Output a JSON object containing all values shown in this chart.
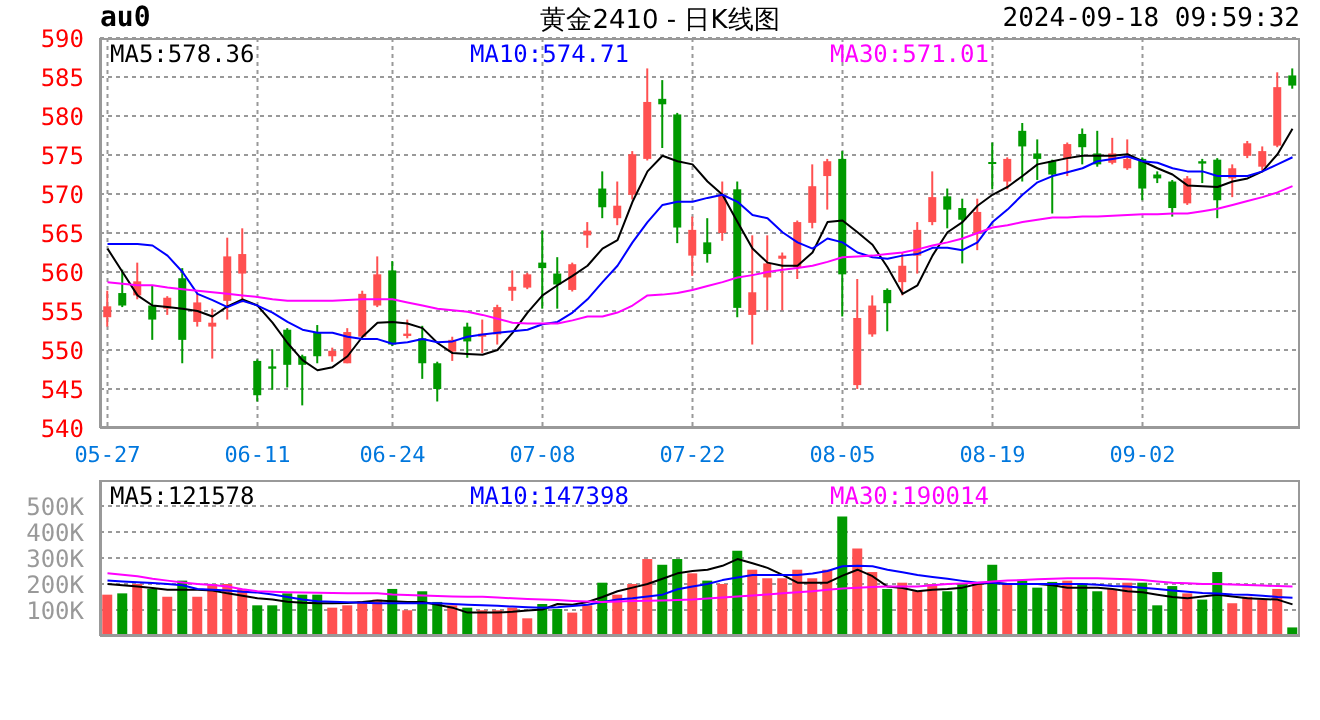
{
  "chart_data": [
    {
      "type": "candlestick",
      "title": "黄金2410 - 日K线图",
      "subtitle": "au0",
      "annotations": [
        "2024-09-18 09:59:32"
      ],
      "categories": [
        "05-27",
        null,
        null,
        null,
        null,
        null,
        null,
        null,
        null,
        null,
        "06-11",
        null,
        null,
        null,
        null,
        null,
        null,
        null,
        null,
        "06-24",
        null,
        null,
        null,
        null,
        null,
        null,
        null,
        null,
        null,
        "07-08",
        null,
        null,
        null,
        null,
        null,
        null,
        null,
        null,
        null,
        "07-22",
        null,
        null,
        null,
        null,
        null,
        null,
        null,
        null,
        null,
        "08-05",
        null,
        null,
        null,
        null,
        null,
        null,
        null,
        null,
        null,
        "08-19",
        null,
        null,
        null,
        null,
        null,
        null,
        null,
        null,
        null,
        "09-02",
        null,
        null,
        null,
        null,
        null,
        null,
        null,
        null,
        null,
        null
      ],
      "ohlc": [
        [
          554.2,
          557.6,
          553.0,
          555.6
        ],
        [
          557.3,
          560.3,
          555.5,
          555.7
        ],
        [
          557.0,
          561.2,
          556.5,
          558.8
        ],
        [
          555.7,
          558.3,
          551.3,
          553.9
        ],
        [
          555.3,
          556.9,
          554.5,
          556.7
        ],
        [
          559.2,
          560.5,
          548.3,
          551.3
        ],
        [
          553.6,
          557.2,
          553.0,
          556.1
        ],
        [
          553.0,
          555.3,
          548.9,
          553.5
        ],
        [
          556.3,
          564.4,
          553.9,
          562.0
        ],
        [
          559.8,
          565.6,
          556.1,
          562.3
        ],
        [
          548.6,
          548.8,
          543.4,
          544.2
        ],
        [
          547.9,
          550.1,
          544.9,
          547.6
        ],
        [
          552.6,
          552.8,
          545.2,
          548.1
        ],
        [
          549.2,
          549.4,
          542.9,
          548.1
        ],
        [
          552.2,
          553.2,
          548.3,
          549.2
        ],
        [
          549.2,
          550.3,
          548.5,
          549.9
        ],
        [
          548.3,
          552.8,
          548.3,
          552.3
        ],
        [
          551.7,
          557.6,
          551.7,
          557.2
        ],
        [
          555.7,
          562.0,
          555.5,
          559.7
        ],
        [
          560.2,
          561.4,
          550.5,
          550.7
        ],
        [
          551.8,
          553.9,
          551.5,
          552.1
        ],
        [
          551.5,
          553.1,
          546.3,
          548.3
        ],
        [
          548.3,
          548.5,
          543.4,
          545.0
        ],
        [
          549.8,
          551.7,
          548.6,
          551.3
        ],
        [
          553.0,
          553.5,
          549.0,
          551.1
        ],
        [
          551.7,
          553.9,
          549.6,
          552.1
        ],
        [
          552.0,
          555.8,
          550.7,
          555.5
        ],
        [
          557.6,
          560.2,
          556.3,
          558.1
        ],
        [
          558.0,
          559.9,
          557.8,
          559.7
        ],
        [
          561.2,
          565.3,
          555.3,
          560.5
        ],
        [
          559.8,
          561.9,
          555.3,
          558.4
        ],
        [
          557.7,
          561.2,
          557.5,
          561.0
        ],
        [
          564.7,
          566.4,
          563.1,
          565.3
        ],
        [
          570.7,
          572.9,
          566.9,
          568.3
        ],
        [
          566.9,
          571.6,
          566.0,
          568.5
        ],
        [
          569.9,
          575.5,
          569.3,
          575.1
        ],
        [
          574.5,
          586.1,
          574.3,
          581.8
        ],
        [
          582.2,
          584.6,
          575.9,
          581.5
        ],
        [
          580.2,
          580.4,
          563.7,
          565.7
        ],
        [
          562.1,
          567.1,
          559.5,
          565.4
        ],
        [
          563.8,
          566.9,
          561.2,
          562.3
        ],
        [
          565.0,
          571.6,
          564.0,
          569.9
        ],
        [
          570.6,
          571.6,
          554.2,
          555.4
        ],
        [
          554.5,
          564.7,
          550.7,
          557.4
        ],
        [
          559.3,
          564.7,
          555.1,
          561.1
        ],
        [
          561.7,
          562.5,
          555.1,
          562.1
        ],
        [
          560.6,
          566.6,
          559.1,
          566.4
        ],
        [
          566.3,
          573.8,
          565.6,
          571.0
        ],
        [
          572.3,
          574.5,
          568.0,
          574.2
        ],
        [
          574.5,
          575.5,
          554.3,
          559.7
        ],
        [
          545.5,
          559.1,
          545.0,
          554.1
        ],
        [
          552.0,
          557.0,
          551.7,
          555.7
        ],
        [
          557.7,
          557.9,
          552.4,
          556.0
        ],
        [
          558.7,
          562.5,
          557.0,
          560.8
        ],
        [
          562.1,
          566.4,
          559.8,
          565.4
        ],
        [
          566.4,
          572.9,
          566.0,
          569.6
        ],
        [
          569.7,
          570.7,
          565.6,
          568.0
        ],
        [
          568.2,
          569.4,
          561.1,
          566.7
        ],
        [
          564.9,
          569.4,
          562.8,
          567.7
        ],
        [
          574.1,
          576.6,
          570.6,
          573.9
        ],
        [
          571.6,
          574.7,
          570.6,
          574.5
        ],
        [
          578.1,
          579.1,
          571.6,
          576.1
        ],
        [
          575.2,
          577.0,
          571.8,
          574.5
        ],
        [
          574.2,
          574.4,
          567.5,
          572.5
        ],
        [
          574.5,
          576.6,
          572.3,
          576.4
        ],
        [
          577.7,
          578.4,
          573.8,
          576.0
        ],
        [
          575.2,
          578.1,
          573.5,
          573.8
        ],
        [
          574.0,
          577.2,
          573.8,
          575.2
        ],
        [
          573.3,
          577.0,
          573.1,
          574.5
        ],
        [
          574.5,
          574.7,
          569.2,
          570.7
        ],
        [
          572.5,
          572.9,
          571.4,
          572.0
        ],
        [
          571.6,
          571.8,
          567.1,
          568.2
        ],
        [
          568.8,
          572.3,
          568.6,
          572.0
        ],
        [
          574.2,
          574.5,
          571.4,
          573.9
        ],
        [
          574.4,
          574.6,
          566.9,
          569.2
        ],
        [
          572.0,
          573.8,
          569.6,
          573.3
        ],
        [
          574.9,
          576.8,
          574.6,
          576.5
        ],
        [
          573.5,
          576.1,
          573.0,
          575.5
        ],
        [
          576.2,
          585.6,
          576.0,
          583.7
        ],
        [
          585.2,
          586.1,
          583.5,
          583.9
        ]
      ],
      "colors": [
        "#ff5050",
        "#009900",
        "#ff5050",
        "#009900",
        "#ff5050",
        "#009900",
        "#ff5050",
        "#ff5050",
        "#ff5050",
        "#ff5050",
        "#009900",
        "#009900",
        "#009900",
        "#009900",
        "#009900",
        "#ff5050",
        "#ff5050",
        "#ff5050",
        "#ff5050",
        "#009900",
        "#ff5050",
        "#009900",
        "#009900",
        "#ff5050",
        "#009900",
        "#ff5050",
        "#ff5050",
        "#ff5050",
        "#ff5050",
        "#009900",
        "#009900",
        "#ff5050",
        "#ff5050",
        "#009900",
        "#ff5050",
        "#ff5050",
        "#ff5050",
        "#009900",
        "#009900",
        "#ff5050",
        "#009900",
        "#ff5050",
        "#009900",
        "#ff5050",
        "#ff5050",
        "#ff5050",
        "#ff5050",
        "#ff5050",
        "#ff5050",
        "#009900",
        "#ff5050",
        "#ff5050",
        "#009900",
        "#ff5050",
        "#ff5050",
        "#ff5050",
        "#009900",
        "#009900",
        "#ff5050",
        "#009900",
        "#ff5050",
        "#009900",
        "#009900",
        "#009900",
        "#ff5050",
        "#009900",
        "#009900",
        "#ff5050",
        "#ff5050",
        "#009900",
        "#009900",
        "#009900",
        "#ff5050",
        "#009900",
        "#009900",
        "#ff5050",
        "#ff5050",
        "#ff5050",
        "#ff5050",
        "#009900"
      ],
      "series": [
        {
          "type": "line",
          "name": "MA5:578.36",
          "color": "#000000",
          "values": [
            563.0,
            560.0,
            557.0,
            555.7,
            555.5,
            555.3,
            555.0,
            554.3,
            555.6,
            556.5,
            555.7,
            553.5,
            550.9,
            548.7,
            547.4,
            547.8,
            549.2,
            551.7,
            553.5,
            553.6,
            553.4,
            552.8,
            550.9,
            549.6,
            549.5,
            549.4,
            550.0,
            552.2,
            554.8,
            557.0,
            558.3,
            559.5,
            560.8,
            563.0,
            564.1,
            569.0,
            572.9,
            574.9,
            574.2,
            573.8,
            571.6,
            569.9,
            566.4,
            563.0,
            561.2,
            560.8,
            560.8,
            562.5,
            566.4,
            566.6,
            565.1,
            563.5,
            560.6,
            557.2,
            558.3,
            562.1,
            565.1,
            566.4,
            568.5,
            569.9,
            570.9,
            572.3,
            573.8,
            574.2,
            574.6,
            574.9,
            574.9,
            574.9,
            575.1,
            574.2,
            573.3,
            572.5,
            571.1,
            571.0,
            570.9,
            571.6,
            572.0,
            572.9,
            575.1,
            578.36
          ]
        },
        {
          "type": "line",
          "name": "MA10:574.71",
          "color": "#0000ff",
          "values": [
            563.6,
            563.6,
            563.6,
            563.4,
            562.1,
            560.0,
            557.2,
            556.4,
            555.5,
            556.3,
            555.7,
            554.8,
            553.6,
            552.6,
            552.2,
            552.2,
            551.7,
            551.4,
            551.4,
            550.8,
            551.0,
            551.4,
            551.0,
            551.1,
            551.7,
            552.0,
            552.2,
            552.4,
            552.6,
            553.3,
            553.6,
            554.8,
            556.5,
            558.7,
            560.8,
            563.8,
            566.4,
            568.6,
            569.0,
            569.0,
            569.5,
            569.9,
            569.0,
            567.3,
            566.9,
            565.1,
            563.8,
            563.0,
            564.3,
            563.8,
            562.5,
            561.9,
            561.7,
            562.1,
            562.3,
            563.1,
            563.1,
            562.8,
            563.8,
            566.4,
            568.0,
            569.9,
            571.5,
            572.3,
            572.8,
            573.3,
            574.2,
            574.5,
            574.8,
            574.2,
            574.0,
            573.3,
            572.9,
            572.9,
            572.3,
            572.3,
            572.3,
            572.9,
            573.8,
            574.71
          ]
        },
        {
          "type": "line",
          "name": "MA30:571.01",
          "color": "#ff00ff",
          "values": [
            558.7,
            558.5,
            558.3,
            558.3,
            558.0,
            557.8,
            557.6,
            557.4,
            557.2,
            557.0,
            556.8,
            556.5,
            556.3,
            556.3,
            556.3,
            556.3,
            556.4,
            556.5,
            556.5,
            556.5,
            556.1,
            555.7,
            555.3,
            555.1,
            554.9,
            554.5,
            554.0,
            553.5,
            553.4,
            553.4,
            553.4,
            553.8,
            554.3,
            554.3,
            554.8,
            555.7,
            557.0,
            557.1,
            557.3,
            557.7,
            558.2,
            558.7,
            559.3,
            559.6,
            560.0,
            560.3,
            560.5,
            560.8,
            561.3,
            561.9,
            562.0,
            562.1,
            562.3,
            562.5,
            562.9,
            563.4,
            563.8,
            564.3,
            565.0,
            565.7,
            566.0,
            566.4,
            566.7,
            567.0,
            567.0,
            567.1,
            567.1,
            567.2,
            567.3,
            567.4,
            567.4,
            567.5,
            567.5,
            567.8,
            568.1,
            568.6,
            569.1,
            569.6,
            570.2,
            571.01
          ]
        }
      ],
      "ylim": [
        540,
        590
      ],
      "yticks": [
        540,
        545,
        550,
        555,
        560,
        565,
        570,
        575,
        580,
        585,
        590
      ],
      "grid": true,
      "legend": "top left"
    },
    {
      "type": "bar",
      "categories": [
        null,
        null,
        null,
        null,
        null,
        null,
        null,
        null,
        null,
        null,
        null,
        null,
        null,
        null,
        null,
        null,
        null,
        null,
        null,
        null,
        null,
        null,
        null,
        null,
        null,
        null,
        null,
        null,
        null,
        null,
        null,
        null,
        null,
        null,
        null,
        null,
        null,
        null,
        null,
        null,
        null,
        null,
        null,
        null,
        null,
        null,
        null,
        null,
        null,
        null,
        null,
        null,
        null,
        null,
        null,
        null,
        null,
        null,
        null,
        null,
        null,
        null,
        null,
        null,
        null,
        null,
        null,
        null,
        null,
        null,
        null,
        null,
        null,
        null,
        null,
        null,
        null,
        null,
        null,
        null
      ],
      "values": [
        159000,
        164000,
        200000,
        181000,
        151000,
        213000,
        151000,
        200000,
        200000,
        181000,
        118000,
        118000,
        164000,
        159000,
        159000,
        109000,
        118000,
        134000,
        140000,
        181000,
        99000,
        172000,
        131000,
        118000,
        109000,
        99000,
        99000,
        109000,
        68000,
        123000,
        104000,
        90000,
        118000,
        205000,
        159000,
        200000,
        296000,
        274000,
        296000,
        241000,
        213000,
        200000,
        328000,
        255000,
        222000,
        222000,
        255000,
        222000,
        255000,
        460000,
        337000,
        246000,
        181000,
        205000,
        172000,
        200000,
        172000,
        200000,
        200000,
        274000,
        200000,
        213000,
        186000,
        208000,
        213000,
        200000,
        172000,
        181000,
        205000,
        205000,
        118000,
        192000,
        164000,
        140000,
        246000,
        126000,
        151000,
        140000,
        181000,
        33000
      ],
      "colors": [
        "#ff5050",
        "#009900",
        "#ff5050",
        "#009900",
        "#ff5050",
        "#009900",
        "#ff5050",
        "#ff5050",
        "#ff5050",
        "#ff5050",
        "#009900",
        "#009900",
        "#009900",
        "#009900",
        "#009900",
        "#ff5050",
        "#ff5050",
        "#ff5050",
        "#ff5050",
        "#009900",
        "#ff5050",
        "#009900",
        "#009900",
        "#ff5050",
        "#009900",
        "#ff5050",
        "#ff5050",
        "#ff5050",
        "#ff5050",
        "#009900",
        "#009900",
        "#ff5050",
        "#ff5050",
        "#009900",
        "#ff5050",
        "#ff5050",
        "#ff5050",
        "#009900",
        "#009900",
        "#ff5050",
        "#009900",
        "#ff5050",
        "#009900",
        "#ff5050",
        "#ff5050",
        "#ff5050",
        "#ff5050",
        "#ff5050",
        "#ff5050",
        "#009900",
        "#ff5050",
        "#ff5050",
        "#009900",
        "#ff5050",
        "#ff5050",
        "#ff5050",
        "#009900",
        "#009900",
        "#ff5050",
        "#009900",
        "#ff5050",
        "#009900",
        "#009900",
        "#009900",
        "#ff5050",
        "#009900",
        "#009900",
        "#ff5050",
        "#ff5050",
        "#009900",
        "#009900",
        "#009900",
        "#ff5050",
        "#009900",
        "#009900",
        "#ff5050",
        "#ff5050",
        "#ff5050",
        "#ff5050",
        "#009900"
      ],
      "series": [
        {
          "type": "line",
          "name": "MA5:121578",
          "color": "#000000",
          "values": [
            200000,
            195000,
            190000,
            185000,
            178000,
            178000,
            178000,
            175000,
            164000,
            155000,
            145000,
            140000,
            132000,
            128000,
            126000,
            126000,
            127000,
            131000,
            137000,
            134000,
            131000,
            131000,
            120000,
            109000,
            90000,
            90000,
            90000,
            93000,
            98000,
            102000,
            123000,
            120000,
            131000,
            150000,
            172000,
            186000,
            200000,
            220000,
            241000,
            250000,
            255000,
            270000,
            296000,
            280000,
            262000,
            235000,
            205000,
            205000,
            205000,
            232000,
            255000,
            230000,
            190000,
            185000,
            172000,
            178000,
            181000,
            186000,
            200000,
            205000,
            200000,
            200000,
            200000,
            195000,
            186000,
            186000,
            186000,
            181000,
            172000,
            168000,
            159000,
            150000,
            145000,
            152000,
            159000,
            152000,
            145000,
            142000,
            140000,
            121578
          ]
        },
        {
          "type": "line",
          "name": "MA10:147398",
          "color": "#0000ff",
          "values": [
            213000,
            210000,
            207000,
            204000,
            200000,
            195000,
            181000,
            178000,
            175000,
            170000,
            167000,
            160000,
            150000,
            140000,
            134000,
            132000,
            130000,
            128000,
            126000,
            126000,
            126000,
            126000,
            126000,
            123000,
            120000,
            118000,
            116000,
            113000,
            111000,
            109000,
            111000,
            115000,
            120000,
            131000,
            140000,
            145000,
            152000,
            159000,
            180000,
            190000,
            200000,
            215000,
            225000,
            235000,
            235000,
            235000,
            235000,
            240000,
            250000,
            268000,
            270000,
            268000,
            255000,
            245000,
            235000,
            227000,
            220000,
            212000,
            205000,
            205000,
            200000,
            200000,
            200000,
            200000,
            200000,
            200000,
            197000,
            192000,
            190000,
            186000,
            181000,
            175000,
            170000,
            165000,
            163000,
            160000,
            159000,
            155000,
            150000,
            147398
          ]
        },
        {
          "type": "line",
          "name": "MA30:190014",
          "color": "#ff00ff",
          "values": [
            241000,
            236000,
            230000,
            220000,
            213000,
            206000,
            200000,
            196000,
            190000,
            180000,
            172000,
            170000,
            168000,
            167000,
            166000,
            165000,
            164000,
            164000,
            164000,
            160000,
            158000,
            156000,
            154000,
            152000,
            151000,
            151000,
            148000,
            145000,
            142000,
            140000,
            138000,
            135000,
            133000,
            131000,
            133000,
            135000,
            136000,
            137000,
            138000,
            140000,
            144000,
            148000,
            152000,
            156000,
            160000,
            164000,
            168000,
            172000,
            178000,
            183000,
            186000,
            188000,
            190000,
            190000,
            190000,
            195000,
            200000,
            202000,
            205000,
            210000,
            213000,
            215000,
            218000,
            220000,
            222000,
            222000,
            222000,
            220000,
            218000,
            215000,
            210000,
            205000,
            203000,
            200000,
            200000,
            198000,
            196000,
            194000,
            192000,
            190014
          ]
        }
      ],
      "ylim": [
        0,
        600000
      ],
      "yticks": [
        {
          "value": 100000,
          "label": "100K"
        },
        {
          "value": 200000,
          "label": "200K"
        },
        {
          "value": 300000,
          "label": "300K"
        },
        {
          "value": 400000,
          "label": "400K"
        },
        {
          "value": 500000,
          "label": "500K"
        }
      ],
      "grid": "y",
      "legend": "top left",
      "tick_labels": "y"
    }
  ]
}
